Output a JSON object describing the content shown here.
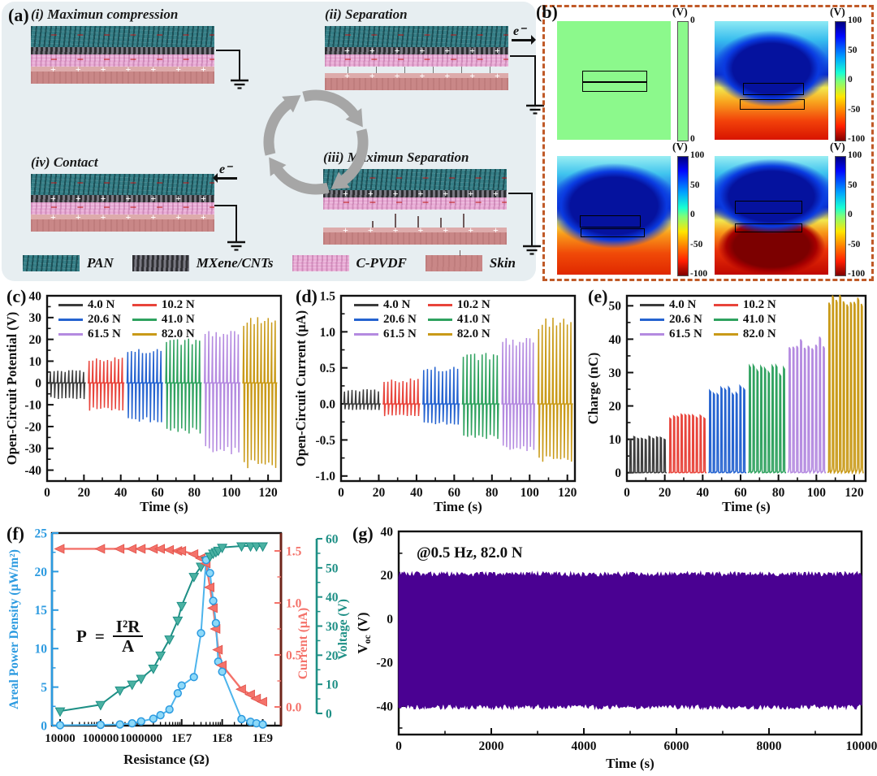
{
  "panel_a": {
    "letter": "(a)",
    "electron_label": "e⁻",
    "charge_plus": "+",
    "charge_minus": "−",
    "stages": [
      {
        "key": "i",
        "label": "(i) Maximun compression",
        "mx_charge": "",
        "gap": "none",
        "electron": "none",
        "hairs": false
      },
      {
        "key": "ii",
        "label": "(ii) Separation",
        "mx_charge": "+",
        "gap": "small",
        "electron": "right",
        "hairs": false
      },
      {
        "key": "iii",
        "label": "(iii) Maximun Separation",
        "mx_charge": "+",
        "gap": "large",
        "electron": "none",
        "hairs": true
      },
      {
        "key": "iv",
        "label": "(iv) Contact",
        "mx_charge": "+",
        "gap": "none",
        "electron": "left",
        "hairs": false
      }
    ],
    "legend": [
      {
        "label": "PAN",
        "tex": "tex-pan"
      },
      {
        "label": "MXene/CNTs",
        "tex": "tex-mx"
      },
      {
        "label": "C-PVDF",
        "tex": "tex-pvdf"
      },
      {
        "label": "Skin",
        "tex": "tex-skin"
      }
    ]
  },
  "panel_b": {
    "letter": "(b)",
    "border_color": "#c05a28",
    "sims": [
      {
        "style": "sim-flat",
        "bar": "cbar-flat",
        "unit": "(V)",
        "ticks": [
          "0",
          "0"
        ]
      },
      {
        "style": "sim-active",
        "bar": "cbar-jet",
        "unit": "(V)",
        "ticks": [
          "100",
          "50",
          "0",
          "-50",
          "-100"
        ]
      },
      {
        "style": "sim-active2",
        "bar": "cbar-jet",
        "unit": "(V)",
        "ticks": [
          "100",
          "50",
          "0",
          "-50",
          "-100"
        ]
      },
      {
        "style": "sim-active3",
        "bar": "cbar-jet",
        "unit": "(V)",
        "ticks": [
          "100",
          "50",
          "0",
          "-50",
          "-100"
        ]
      }
    ]
  },
  "chart_data": [
    {
      "id": "c",
      "type": "line",
      "letter": "(c)",
      "title": "",
      "xlabel": "Time (s)",
      "ylabel": "Open-Circuit Potential (V)",
      "xlim": [
        0,
        127
      ],
      "ylim": [
        -45,
        40
      ],
      "xticks": [
        [
          0,
          "0"
        ],
        [
          20,
          "20"
        ],
        [
          40,
          "40"
        ],
        [
          60,
          "60"
        ],
        [
          80,
          "80"
        ],
        [
          100,
          "100"
        ],
        [
          120,
          "120"
        ]
      ],
      "yticks": [
        [
          -40,
          "-40"
        ],
        [
          -30,
          "-30"
        ],
        [
          -20,
          "-20"
        ],
        [
          -10,
          "-10"
        ],
        [
          0,
          "0"
        ],
        [
          10,
          "10"
        ],
        [
          20,
          "20"
        ],
        [
          30,
          "30"
        ],
        [
          40,
          "40"
        ]
      ],
      "xminor": 10,
      "yminor": 5,
      "grid": false,
      "legend_position": "top-left",
      "series": [
        {
          "name": "4.0 N",
          "color": "#3d3d3d",
          "start": 1,
          "end": 21,
          "peaks": 10,
          "pos": 5.5,
          "neg": -7
        },
        {
          "name": "10.2 N",
          "color": "#e8443b",
          "start": 22,
          "end": 42,
          "peaks": 10,
          "pos": 11,
          "neg": -12
        },
        {
          "name": "20.6 N",
          "color": "#2563d0",
          "start": 43,
          "end": 63,
          "peaks": 10,
          "pos": 14.5,
          "neg": -17
        },
        {
          "name": "41.0 N",
          "color": "#2fa25f",
          "start": 64,
          "end": 84,
          "peaks": 10,
          "pos": 19,
          "neg": -22
        },
        {
          "name": "61.5 N",
          "color": "#b48ae0",
          "start": 85,
          "end": 105,
          "peaks": 10,
          "pos": 23,
          "neg": -31
        },
        {
          "name": "82.0 N",
          "color": "#c99a18",
          "start": 106,
          "end": 125,
          "peaks": 10,
          "pos": 29,
          "neg": -37
        }
      ]
    },
    {
      "id": "d",
      "type": "line",
      "letter": "(d)",
      "title": "",
      "xlabel": "Time (s)",
      "ylabel": "Open-Circuit Current (µA)",
      "xlim": [
        0,
        124
      ],
      "ylim": [
        -1.07,
        1.5
      ],
      "xticks": [
        [
          0,
          "0"
        ],
        [
          20,
          "20"
        ],
        [
          40,
          "40"
        ],
        [
          60,
          "60"
        ],
        [
          80,
          "80"
        ],
        [
          100,
          "100"
        ],
        [
          120,
          "120"
        ]
      ],
      "yticks": [
        [
          -1,
          "-1.0"
        ],
        [
          -0.5,
          "-0.5"
        ],
        [
          0,
          "0.0"
        ],
        [
          0.5,
          "0.5"
        ],
        [
          1,
          "1.0"
        ],
        [
          1.5,
          "1.5"
        ]
      ],
      "xminor": 10,
      "yminor": 0.25,
      "grid": false,
      "legend_position": "top-left",
      "series": [
        {
          "name": "4.0 N",
          "color": "#3d3d3d",
          "start": 1,
          "end": 21,
          "peaks": 10,
          "pos": 0.19,
          "neg": -0.08
        },
        {
          "name": "10.2 N",
          "color": "#e8443b",
          "start": 22,
          "end": 42,
          "peaks": 10,
          "pos": 0.33,
          "neg": -0.16
        },
        {
          "name": "20.6 N",
          "color": "#2563d0",
          "start": 43,
          "end": 63,
          "peaks": 10,
          "pos": 0.48,
          "neg": -0.27
        },
        {
          "name": "41.0 N",
          "color": "#2fa25f",
          "start": 64,
          "end": 84,
          "peaks": 10,
          "pos": 0.66,
          "neg": -0.46
        },
        {
          "name": "61.5 N",
          "color": "#b48ae0",
          "start": 85,
          "end": 103,
          "peaks": 10,
          "pos": 0.88,
          "neg": -0.62
        },
        {
          "name": "82.0 N",
          "color": "#c99a18",
          "start": 104,
          "end": 123,
          "peaks": 10,
          "pos": 1.15,
          "neg": -0.76
        }
      ]
    },
    {
      "id": "e",
      "type": "line",
      "letter": "(e)",
      "title": "",
      "xlabel": "Time (s)",
      "ylabel": "Charge (nC)",
      "xlim": [
        0,
        126
      ],
      "ylim": [
        -2.5,
        53
      ],
      "xticks": [
        [
          0,
          "0"
        ],
        [
          20,
          "20"
        ],
        [
          40,
          "40"
        ],
        [
          60,
          "60"
        ],
        [
          80,
          "80"
        ],
        [
          100,
          "100"
        ],
        [
          120,
          "120"
        ]
      ],
      "yticks": [
        [
          0,
          "0"
        ],
        [
          10,
          "10"
        ],
        [
          20,
          "20"
        ],
        [
          30,
          "30"
        ],
        [
          40,
          "40"
        ],
        [
          50,
          "50"
        ]
      ],
      "xminor": 10,
      "yminor": 5,
      "grid": false,
      "legend_position": "top-left",
      "series": [
        {
          "name": "4.0 N",
          "color": "#3d3d3d",
          "start": 1,
          "end": 21,
          "peaks": 10,
          "peak": 10.5,
          "base": 0.4
        },
        {
          "name": "10.2 N",
          "color": "#e8443b",
          "start": 22,
          "end": 42,
          "peaks": 10,
          "peak": 17,
          "base": 0.5
        },
        {
          "name": "20.6 N",
          "color": "#2563d0",
          "start": 43,
          "end": 63,
          "peaks": 10,
          "peak": 25,
          "base": 1.0
        },
        {
          "name": "41.0 N",
          "color": "#2fa25f",
          "start": 64,
          "end": 84,
          "peaks": 10,
          "peak": 31,
          "base": 1.2
        },
        {
          "name": "61.5 N",
          "color": "#b48ae0",
          "start": 85,
          "end": 105,
          "peaks": 10,
          "peak": 39.5,
          "base": 1.8
        },
        {
          "name": "82.0 N",
          "color": "#c99a18",
          "start": 106,
          "end": 125,
          "peaks": 10,
          "peak": 51.5,
          "base": 2.5
        }
      ]
    },
    {
      "id": "f",
      "type": "scatter",
      "letter": "(f)",
      "title": "",
      "xlabel": "Resistance (Ω)",
      "ylabel_power": "Areal Power Density (µW/m²)",
      "ylabel_current": "Current (µA)",
      "ylabel_voltage": "Voltage (V)",
      "formula": {
        "lhs": "P",
        "eq": "=",
        "num": "I²R",
        "den": "A"
      },
      "colors": {
        "power": "#2b9ae0",
        "power_fill": "#8ed9f8",
        "current": "#f4726a",
        "voltage": "#1d8f85",
        "voltage_fill": "#4ab1a2",
        "frame_right": "#6e241a"
      },
      "xlog_lim": [
        3.8,
        9.45
      ],
      "xticks": [
        [
          4,
          "10000"
        ],
        [
          5,
          "100000"
        ],
        [
          6,
          "1000000"
        ],
        [
          7,
          "1E7"
        ],
        [
          8,
          "1E8"
        ],
        [
          9,
          "1E9"
        ]
      ],
      "power_ticks": [
        [
          0,
          "0"
        ],
        [
          5,
          "5"
        ],
        [
          10,
          "10"
        ],
        [
          15,
          "15"
        ],
        [
          20,
          "20"
        ],
        [
          25,
          "25"
        ]
      ],
      "current_ticks": [
        [
          0,
          "0.0"
        ],
        [
          0.5,
          "0.5"
        ],
        [
          1,
          "1.0"
        ],
        [
          1.5,
          "1.5"
        ]
      ],
      "voltage_ticks": [
        [
          0,
          "0"
        ],
        [
          10,
          "10"
        ],
        [
          20,
          "20"
        ],
        [
          30,
          "30"
        ],
        [
          40,
          "40"
        ],
        [
          50,
          "50"
        ],
        [
          60,
          "60"
        ]
      ],
      "power_lim": [
        0,
        25
      ],
      "resistance": [
        10000,
        100000,
        300000,
        600000,
        1000000,
        2000000,
        3000000,
        5000000,
        8000000,
        10000000,
        20000000,
        30000000,
        40000000,
        50000000,
        60000000,
        70000000,
        80000000,
        100000000,
        300000000,
        500000000,
        700000000,
        1000000000
      ],
      "power": [
        0.05,
        0.1,
        0.15,
        0.3,
        0.55,
        0.9,
        1.35,
        2.1,
        4.2,
        5.2,
        6.3,
        12.0,
        21.5,
        19.8,
        16.2,
        13.3,
        8.3,
        7.0,
        0.85,
        0.5,
        0.3,
        0.15
      ],
      "current": [
        1.52,
        1.52,
        1.52,
        1.52,
        1.52,
        1.52,
        1.52,
        1.51,
        1.5,
        1.5,
        1.47,
        1.43,
        1.38,
        1.15,
        0.95,
        0.75,
        0.55,
        0.4,
        0.17,
        0.12,
        0.08,
        0.05
      ],
      "voltage": [
        0.8,
        3.0,
        8.0,
        10.0,
        12.0,
        15.5,
        20.0,
        25.5,
        32.0,
        37.0,
        47.0,
        50.5,
        52.5,
        54.0,
        55.0,
        55.5,
        56.0,
        57.0,
        57.5,
        57.5,
        57.5,
        57.5
      ]
    },
    {
      "id": "g",
      "type": "area",
      "letter": "(g)",
      "title": "",
      "xlabel": "Time (s)",
      "ylabel": {
        "main": "V",
        "sub": "oc",
        "unit": " (V)"
      },
      "annotation": "@0.5 Hz, 82.0 N",
      "xlim": [
        0,
        10000
      ],
      "ylim": [
        -53,
        40
      ],
      "xticks": [
        [
          0,
          "0"
        ],
        [
          2000,
          "2000"
        ],
        [
          4000,
          "4000"
        ],
        [
          6000,
          "6000"
        ],
        [
          8000,
          "8000"
        ],
        [
          10000,
          "10000"
        ]
      ],
      "yticks": [
        [
          -40,
          "-40"
        ],
        [
          -20,
          "-20"
        ],
        [
          0,
          "0"
        ],
        [
          20,
          "20"
        ],
        [
          40,
          "40"
        ]
      ],
      "xminor": 1000,
      "yminor": 10,
      "band": {
        "top": 20.3,
        "bottom": -40.2,
        "jitter": 1.2,
        "color": "#4a0192"
      }
    }
  ]
}
